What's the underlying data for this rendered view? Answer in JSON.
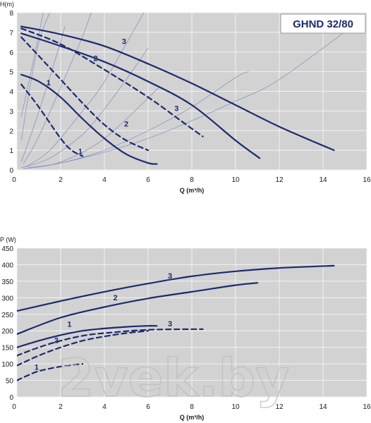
{
  "watermark": "2vek.by",
  "colors": {
    "plot_bg": "#d2d2d2",
    "grid": "#f2f2f2",
    "curve": "#1d2a6e",
    "thin": "#8b93c2"
  },
  "chart_data": [
    {
      "type": "line",
      "title": "GHND 32/80",
      "xlabel": "Q (m³/h)",
      "ylabel": "H(m)",
      "xlim": [
        0,
        16
      ],
      "ylim": [
        0,
        8
      ],
      "xticks": [
        "0",
        "2",
        "4",
        "6",
        "8",
        "10",
        "12",
        "14",
        "16"
      ],
      "yticks": [
        "0",
        "1",
        "2",
        "3",
        "4",
        "5",
        "6",
        "7",
        "8"
      ],
      "grid": true,
      "series": [
        {
          "name": "3",
          "style": "solid",
          "x": [
            0.2,
            2,
            4,
            6,
            8,
            10,
            12,
            14.5
          ],
          "y": [
            7.3,
            6.9,
            6.3,
            5.4,
            4.4,
            3.3,
            2.2,
            1.0
          ]
        },
        {
          "name": "2",
          "style": "solid",
          "x": [
            0.2,
            2,
            4,
            6,
            8,
            10,
            11.1
          ],
          "y": [
            6.95,
            6.3,
            5.5,
            4.5,
            3.3,
            1.5,
            0.6
          ]
        },
        {
          "name": "3",
          "style": "dashed",
          "x": [
            0.2,
            2,
            4,
            6,
            7.5,
            8.5
          ],
          "y": [
            7.2,
            6.4,
            5.1,
            3.7,
            2.5,
            1.7
          ]
        },
        {
          "name": "2",
          "style": "dashed",
          "x": [
            0.2,
            1,
            2,
            3,
            4,
            5,
            6
          ],
          "y": [
            6.75,
            5.8,
            4.6,
            3.4,
            2.3,
            1.5,
            1.0
          ]
        },
        {
          "name": "1",
          "style": "solid",
          "x": [
            0.2,
            1,
            2,
            3,
            4,
            5,
            6,
            6.4
          ],
          "y": [
            4.85,
            4.5,
            3.7,
            2.6,
            1.6,
            0.8,
            0.35,
            0.3
          ]
        },
        {
          "name": "1",
          "style": "dashed",
          "x": [
            0.2,
            1,
            2,
            2.5,
            3
          ],
          "y": [
            4.35,
            3.2,
            1.6,
            1.0,
            0.7
          ]
        }
      ],
      "curve_labels": [
        {
          "text": "3",
          "x": 4.9,
          "y": 6.4
        },
        {
          "text": "2",
          "x": 3.6,
          "y": 5.55
        },
        {
          "text": "3",
          "x": 7.3,
          "y": 3.0
        },
        {
          "text": "2",
          "x": 5.0,
          "y": 2.2
        },
        {
          "text": "1",
          "x": 1.45,
          "y": 4.3
        },
        {
          "text": "1",
          "x": 2.9,
          "y": 0.8
        }
      ],
      "system_lines": [
        {
          "x": [
            0.5,
            2,
            4,
            6.5
          ],
          "y": [
            0.1,
            0.4,
            1.6,
            4.2
          ]
        },
        {
          "x": [
            0.5,
            2,
            4,
            6,
            8,
            10,
            12,
            15.8
          ],
          "y": [
            0.1,
            0.35,
            0.9,
            1.6,
            2.5,
            3.5,
            4.6,
            7.7
          ]
        },
        {
          "x": [
            0.4,
            1.5,
            3,
            4,
            5.8
          ],
          "y": [
            0.15,
            1.0,
            3.0,
            4.5,
            8.0
          ]
        },
        {
          "x": [
            0.3,
            1,
            2,
            3,
            3.4
          ],
          "y": [
            0.3,
            1.7,
            4.2,
            6.8,
            8.0
          ]
        },
        {
          "x": [
            0.2,
            0.8,
            1.5,
            2.2
          ],
          "y": [
            0.4,
            2.3,
            4.7,
            7.3
          ]
        },
        {
          "x": [
            0.2,
            1.5,
            3,
            4,
            5,
            6
          ],
          "y": [
            0.1,
            0.6,
            1.8,
            3.1,
            4.6,
            6.2
          ]
        },
        {
          "x": [
            0.3,
            2,
            4,
            6,
            8,
            10,
            10.6
          ],
          "y": [
            0.05,
            0.35,
            1.0,
            2.0,
            3.2,
            4.7,
            5.0
          ]
        },
        {
          "x": [
            0.2,
            0.5,
            1,
            1.5
          ],
          "y": [
            1.5,
            3.6,
            6.5,
            8.0
          ]
        },
        {
          "x": [
            0.2,
            0.8,
            1.2
          ],
          "y": [
            2.7,
            5.8,
            8.0
          ]
        }
      ]
    },
    {
      "type": "line",
      "title": "",
      "xlabel": "Q (m³/h)",
      "ylabel": "P (W)",
      "xlim": [
        0,
        16
      ],
      "ylim": [
        0,
        450
      ],
      "xticks": [
        "0",
        "2",
        "4",
        "6",
        "8",
        "10",
        "12",
        "14",
        "16"
      ],
      "yticks": [
        "0",
        "50",
        "100",
        "150",
        "200",
        "250",
        "300",
        "350",
        "400",
        "450"
      ],
      "grid": true,
      "series": [
        {
          "name": "3",
          "style": "solid",
          "x": [
            0,
            2,
            4,
            6,
            8,
            10,
            12,
            14.5
          ],
          "y": [
            260,
            290,
            318,
            343,
            365,
            380,
            390,
            397
          ]
        },
        {
          "name": "2",
          "style": "solid",
          "x": [
            0,
            2,
            4,
            6,
            8,
            10,
            11
          ],
          "y": [
            190,
            240,
            272,
            298,
            318,
            338,
            345
          ]
        },
        {
          "name": "1",
          "style": "solid",
          "x": [
            0,
            1,
            2,
            3,
            4,
            5,
            6,
            6.4
          ],
          "y": [
            150,
            170,
            187,
            200,
            207,
            212,
            215,
            215
          ]
        },
        {
          "name": "3",
          "style": "dashed",
          "x": [
            0,
            1,
            2,
            3,
            4,
            6,
            8.5
          ],
          "y": [
            125,
            150,
            170,
            185,
            193,
            203,
            205
          ]
        },
        {
          "name": "2",
          "style": "dashed",
          "x": [
            0,
            1,
            2,
            3,
            4,
            5,
            6
          ],
          "y": [
            95,
            125,
            150,
            170,
            183,
            193,
            200
          ]
        },
        {
          "name": "1",
          "style": "dashed",
          "x": [
            0,
            0.5,
            1,
            2,
            3
          ],
          "y": [
            50,
            65,
            78,
            92,
            100
          ]
        }
      ],
      "curve_labels": [
        {
          "text": "3",
          "x": 7.0,
          "y": 358
        },
        {
          "text": "2",
          "x": 4.5,
          "y": 292
        },
        {
          "text": "1",
          "x": 2.4,
          "y": 212
        },
        {
          "text": "3",
          "x": 7.0,
          "y": 213
        },
        {
          "text": "2",
          "x": 1.8,
          "y": 163
        },
        {
          "text": "1",
          "x": 0.9,
          "y": 82
        }
      ]
    }
  ]
}
